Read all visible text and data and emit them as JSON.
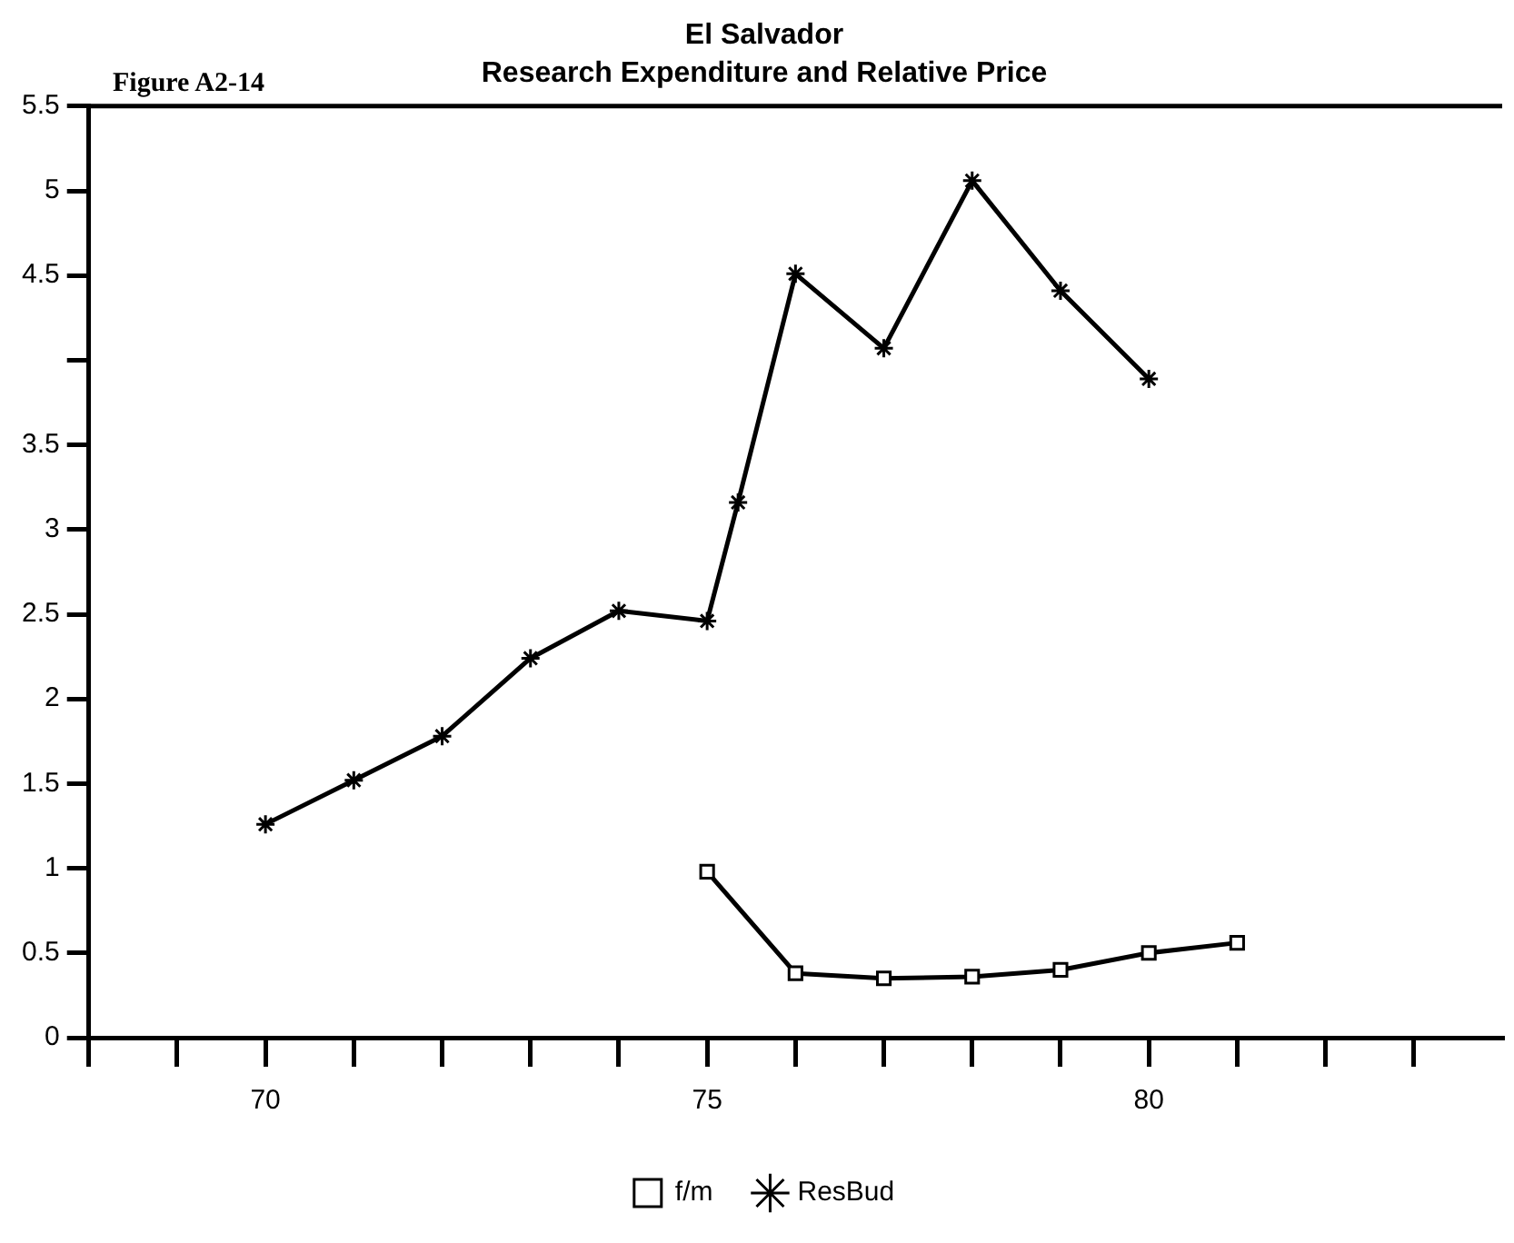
{
  "chart_data": {
    "type": "line",
    "title": "El Salvador",
    "subtitle": "Research Expenditure and Relative Price",
    "annotations": [
      "Figure A2-14"
    ],
    "xlim": [
      68,
      84
    ],
    "xticks": [
      {
        "value": 68,
        "label": null
      },
      {
        "value": 69,
        "label": null
      },
      70,
      {
        "value": 71,
        "label": null
      },
      {
        "value": 72,
        "label": null
      },
      {
        "value": 73,
        "label": null
      },
      {
        "value": 74,
        "label": null
      },
      75,
      {
        "value": 76,
        "label": null
      },
      {
        "value": 77,
        "label": null
      },
      {
        "value": 78,
        "label": null
      },
      {
        "value": 79,
        "label": null
      },
      80,
      {
        "value": 81,
        "label": null
      },
      {
        "value": 82,
        "label": null
      },
      {
        "value": 83,
        "label": null
      }
    ],
    "ylim": [
      0,
      5.5
    ],
    "yticks": [
      0,
      0.5,
      1,
      1.5,
      2,
      2.5,
      3,
      3.5,
      {
        "value": 4,
        "label": null
      },
      4.5,
      5,
      5.5
    ],
    "grid": false,
    "legend": "bottom",
    "series": [
      {
        "name": "f/m",
        "color": "#000000",
        "marker": "square",
        "x": [
          75,
          76,
          77,
          78,
          79,
          80,
          81
        ],
        "values": [
          0.98,
          0.38,
          0.35,
          0.36,
          0.4,
          0.5,
          0.56
        ]
      },
      {
        "name": "ResBud",
        "color": "#000000",
        "marker": "cross",
        "x": [
          70,
          71,
          72,
          73,
          74,
          75,
          75.35,
          76,
          77,
          78,
          79,
          80
        ],
        "values": [
          1.26,
          1.52,
          1.78,
          2.24,
          2.52,
          2.46,
          3.16,
          4.51,
          4.07,
          5.06,
          4.41,
          3.89
        ]
      }
    ]
  }
}
